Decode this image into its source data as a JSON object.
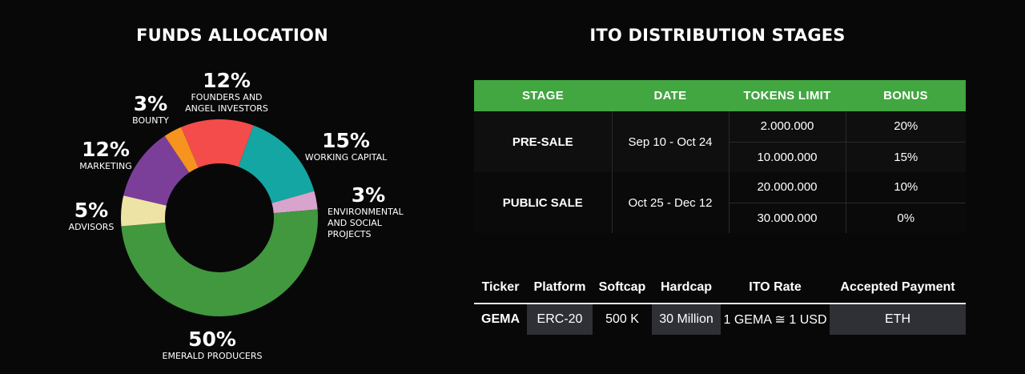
{
  "funds_allocation": {
    "title": "FUNDS ALLOCATION"
  },
  "chart_data": {
    "type": "pie",
    "title": "FUNDS ALLOCATION",
    "slices": [
      {
        "label": "FOUNDERS AND ANGEL INVESTORS",
        "value": 12,
        "pct_label": "12%",
        "color": "#f34c4a"
      },
      {
        "label": "WORKING CAPITAL",
        "value": 15,
        "pct_label": "15%",
        "color": "#13a6a3"
      },
      {
        "label": "ENVIRONMENTAL AND SOCIAL PROJECTS",
        "value": 3,
        "pct_label": "3%",
        "color": "#d8a3cc"
      },
      {
        "label": "EMERALD PRODUCERS",
        "value": 50,
        "pct_label": "50%",
        "color": "#41983f"
      },
      {
        "label": "ADVISORS",
        "value": 5,
        "pct_label": "5%",
        "color": "#ede3a4"
      },
      {
        "label": "MARKETING",
        "value": 12,
        "pct_label": "12%",
        "color": "#7b3f9a"
      },
      {
        "label": "BOUNTY",
        "value": 3,
        "pct_label": "3%",
        "color": "#f6941f"
      }
    ]
  },
  "ito_stages": {
    "title": "ITO DISTRIBUTION STAGES",
    "headers": [
      "STAGE",
      "DATE",
      "TOKENS LIMIT",
      "BONUS"
    ],
    "stages": [
      {
        "name": "PRE-SALE",
        "date": "Sep 10 - Oct 24",
        "tiers": [
          {
            "limit": "2.000.000",
            "bonus": "20%"
          },
          {
            "limit": "10.000.000",
            "bonus": "15%"
          }
        ]
      },
      {
        "name": "PUBLIC SALE",
        "date": "Oct 25 - Dec 12",
        "tiers": [
          {
            "limit": "20.000.000",
            "bonus": "10%"
          },
          {
            "limit": "30.000.000",
            "bonus": "0%"
          }
        ]
      }
    ]
  },
  "token_info": {
    "headers": [
      "Ticker",
      "Platform",
      "Softcap",
      "Hardcap",
      "ITO Rate",
      "Accepted Payment"
    ],
    "values": [
      "GEMA",
      "ERC-20",
      "500 K",
      "30 Million",
      "1 GEMA ≅ 1 USD",
      "ETH"
    ]
  },
  "colors": {
    "background": "#080808",
    "header_green": "#42a641",
    "shaded_cell": "#2e3035"
  }
}
